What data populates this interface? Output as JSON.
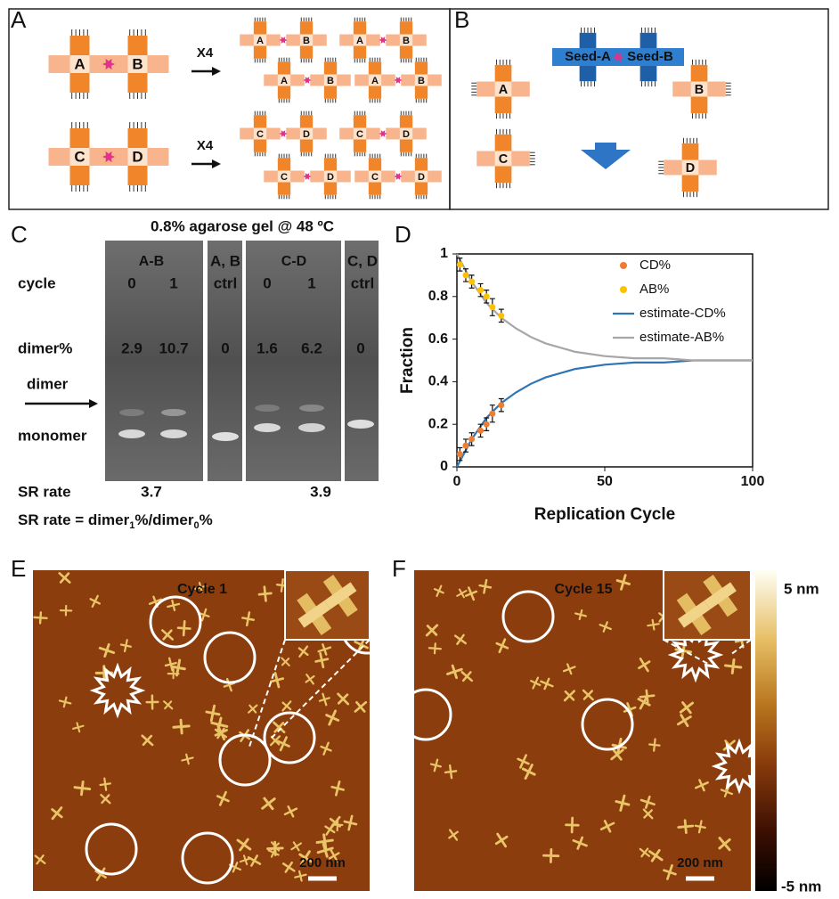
{
  "panels": {
    "a": "A",
    "b": "B",
    "c": "C",
    "d": "D",
    "e": "E",
    "f": "F"
  },
  "panel_a": {
    "pairs": [
      {
        "left": "A",
        "right": "B"
      },
      {
        "left": "C",
        "right": "D"
      }
    ],
    "multiplier": "X4"
  },
  "panel_b": {
    "seeds": [
      "Seed-A",
      "Seed-B"
    ],
    "tiles": [
      "A",
      "B",
      "C",
      "D"
    ]
  },
  "panel_c": {
    "title": "0.8% agarose gel @ 48 ºC",
    "groups": [
      "A-B",
      "C-D"
    ],
    "ctrl_labels": [
      [
        "A, B",
        "ctrl"
      ],
      [
        "C, D",
        "ctrl"
      ]
    ],
    "row_labels": {
      "cycle": "cycle",
      "dimer_pct": "dimer%",
      "dimer": "dimer",
      "monomer": "monomer",
      "sr_rate": "SR rate"
    },
    "cycles": [
      0,
      1,
      0,
      1
    ],
    "dimer_pct": [
      2.9,
      10.7,
      0,
      1.6,
      6.2,
      0
    ],
    "sr_rates": [
      3.7,
      3.9
    ],
    "formula": [
      "SR rate = dimer",
      "1",
      "%/dimer",
      "0",
      "%"
    ]
  },
  "chart_data": {
    "type": "line",
    "xlabel": "Replication Cycle",
    "ylabel": "Fraction",
    "xlim": [
      0,
      100
    ],
    "ylim": [
      0,
      1
    ],
    "xticks": [
      0,
      50,
      100
    ],
    "yticks": [
      0,
      0.2,
      0.4,
      0.6,
      0.8,
      1
    ],
    "legend": "upper right",
    "frame": true,
    "series": [
      {
        "name": "CD%",
        "color": "#ed7d31",
        "kind": "scatter",
        "x": [
          1,
          3,
          5,
          8,
          10,
          12,
          15
        ],
        "values": [
          0.06,
          0.1,
          0.13,
          0.17,
          0.2,
          0.25,
          0.29
        ],
        "errors": [
          0.03,
          0.03,
          0.03,
          0.03,
          0.03,
          0.04,
          0.03
        ]
      },
      {
        "name": "AB%",
        "color": "#ffc000",
        "kind": "scatter",
        "x": [
          1,
          3,
          5,
          8,
          10,
          12,
          15
        ],
        "values": [
          0.95,
          0.9,
          0.87,
          0.83,
          0.8,
          0.75,
          0.71
        ],
        "errors": [
          0.03,
          0.03,
          0.03,
          0.03,
          0.03,
          0.04,
          0.03
        ]
      },
      {
        "name": "estimate-CD%",
        "color": "#2e75b6",
        "kind": "line",
        "x": [
          0,
          5,
          10,
          15,
          20,
          25,
          30,
          40,
          50,
          60,
          70,
          80,
          90,
          100
        ],
        "values": [
          0,
          0.13,
          0.23,
          0.3,
          0.35,
          0.39,
          0.42,
          0.46,
          0.48,
          0.49,
          0.49,
          0.5,
          0.5,
          0.5
        ]
      },
      {
        "name": "estimate-AB%",
        "color": "#a6a6a6",
        "kind": "line",
        "x": [
          0,
          5,
          10,
          15,
          20,
          25,
          30,
          40,
          50,
          60,
          70,
          80,
          90,
          100
        ],
        "values": [
          1,
          0.87,
          0.77,
          0.7,
          0.65,
          0.61,
          0.58,
          0.54,
          0.52,
          0.51,
          0.51,
          0.5,
          0.5,
          0.5
        ]
      }
    ]
  },
  "panel_e": {
    "title": "Cycle 1",
    "scale_bar": "200 nm"
  },
  "panel_f": {
    "title": "Cycle 15",
    "scale_bar": "200 nm"
  },
  "colorbar": {
    "max": "5 nm",
    "min": "-5 nm"
  }
}
